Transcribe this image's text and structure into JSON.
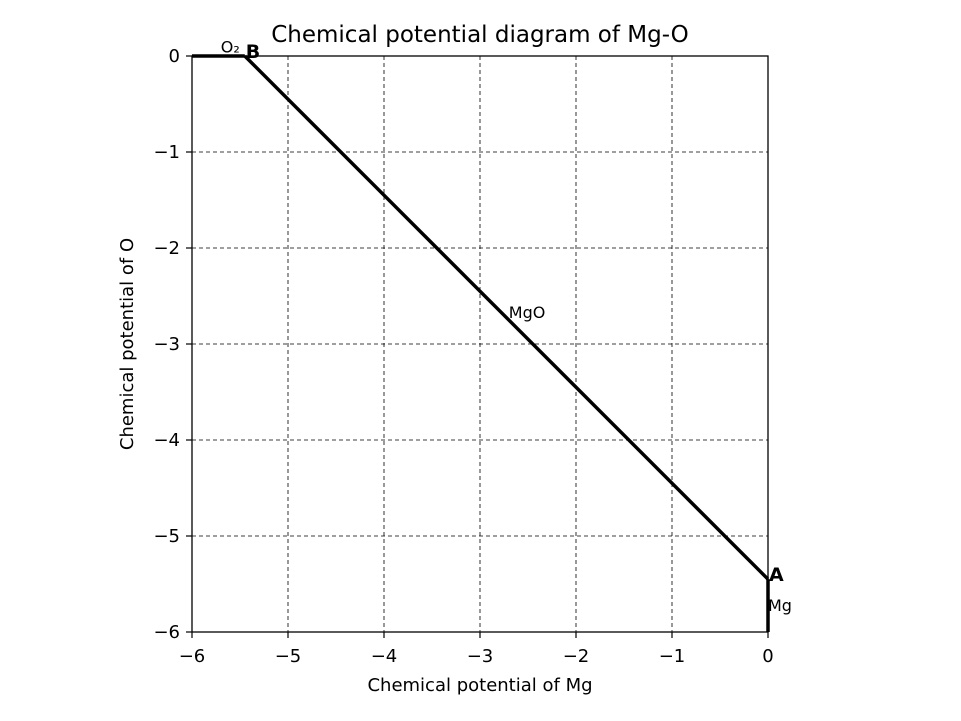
{
  "chart_data": {
    "type": "line",
    "title": "Chemical potential diagram of Mg-O",
    "xlabel": "Chemical potential of Mg",
    "ylabel": "Chemical potential of O",
    "xlim": [
      -6,
      0
    ],
    "ylim": [
      -6,
      0
    ],
    "grid": true,
    "xticks": [
      -6,
      -5,
      -4,
      -3,
      -2,
      -1,
      0
    ],
    "yticks": [
      0,
      -1,
      -2,
      -3,
      -4,
      -5,
      -6
    ],
    "xtick_labels": [
      "−6",
      "−5",
      "−4",
      "−3",
      "−2",
      "−1",
      "0"
    ],
    "ytick_labels": [
      "0",
      "−1",
      "−2",
      "−3",
      "−4",
      "−5",
      "−6"
    ],
    "lines": [
      {
        "x": [
          -6,
          -5.45
        ],
        "y": [
          0,
          0
        ]
      },
      {
        "x": [
          -5.45,
          0
        ],
        "y": [
          0,
          -5.45
        ]
      },
      {
        "x": [
          0,
          0
        ],
        "y": [
          -5.45,
          -6
        ]
      }
    ],
    "points": [
      {
        "label": "A",
        "x": 0,
        "y": -5.45,
        "color": "#0000ff"
      },
      {
        "label": "B",
        "x": -5.45,
        "y": 0,
        "color": "#0000ff"
      }
    ],
    "annotations": [
      {
        "text": "MgO",
        "x": -2.7,
        "y": -2.7,
        "color": "#0000ff"
      },
      {
        "text": "Mg",
        "x": 0,
        "y": -5.75,
        "color": "#000000"
      },
      {
        "text": "O₂",
        "x": -5.7,
        "y": 0.07,
        "color": "#000000"
      }
    ]
  }
}
